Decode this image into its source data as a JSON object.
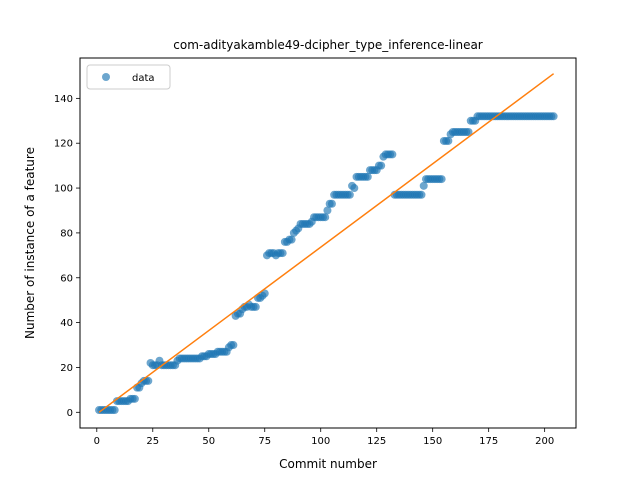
{
  "chart_data": {
    "type": "scatter",
    "title": "com-adityakamble49-dcipher_type_inference-linear",
    "xlabel": "Commit number",
    "ylabel": "Number of instance of a feature",
    "xlim": [
      -7.5,
      214
    ],
    "ylim": [
      -7,
      158
    ],
    "xticks": [
      0,
      25,
      50,
      75,
      100,
      125,
      150,
      175,
      200
    ],
    "yticks": [
      0,
      20,
      40,
      60,
      80,
      100,
      120,
      140
    ],
    "grid": false,
    "legend": {
      "placement": "top-left",
      "entries": [
        "data"
      ]
    },
    "colors": {
      "data": "#1f77b4",
      "fit": "#ff7f0e"
    },
    "series": [
      {
        "name": "data",
        "kind": "scatter",
        "points": [
          [
            1,
            1
          ],
          [
            2,
            1
          ],
          [
            3,
            1
          ],
          [
            4,
            1
          ],
          [
            5,
            1
          ],
          [
            6,
            1
          ],
          [
            7,
            1
          ],
          [
            8,
            1
          ],
          [
            9,
            5
          ],
          [
            10,
            5
          ],
          [
            11,
            5
          ],
          [
            12,
            5
          ],
          [
            13,
            5
          ],
          [
            14,
            5
          ],
          [
            15,
            6
          ],
          [
            16,
            6
          ],
          [
            17,
            6
          ],
          [
            18,
            11
          ],
          [
            19,
            11
          ],
          [
            20,
            13
          ],
          [
            21,
            14
          ],
          [
            22,
            14
          ],
          [
            23,
            14
          ],
          [
            24,
            22
          ],
          [
            25,
            21
          ],
          [
            26,
            21
          ],
          [
            27,
            21
          ],
          [
            28,
            23
          ],
          [
            29,
            21
          ],
          [
            30,
            21
          ],
          [
            31,
            21
          ],
          [
            32,
            21
          ],
          [
            33,
            21
          ],
          [
            34,
            21
          ],
          [
            35,
            21
          ],
          [
            36,
            23
          ],
          [
            37,
            24
          ],
          [
            38,
            24
          ],
          [
            39,
            24
          ],
          [
            40,
            24
          ],
          [
            41,
            24
          ],
          [
            42,
            24
          ],
          [
            43,
            24
          ],
          [
            44,
            24
          ],
          [
            45,
            24
          ],
          [
            46,
            24
          ],
          [
            47,
            25
          ],
          [
            48,
            25
          ],
          [
            49,
            25
          ],
          [
            50,
            26
          ],
          [
            51,
            26
          ],
          [
            52,
            26
          ],
          [
            53,
            26
          ],
          [
            54,
            27
          ],
          [
            55,
            27
          ],
          [
            56,
            27
          ],
          [
            57,
            27
          ],
          [
            58,
            27
          ],
          [
            59,
            29
          ],
          [
            60,
            30
          ],
          [
            61,
            30
          ],
          [
            62,
            43
          ],
          [
            63,
            44
          ],
          [
            64,
            44
          ],
          [
            65,
            46
          ],
          [
            66,
            47
          ],
          [
            67,
            47
          ],
          [
            68,
            48
          ],
          [
            69,
            47
          ],
          [
            70,
            47
          ],
          [
            71,
            47
          ],
          [
            72,
            51
          ],
          [
            73,
            51
          ],
          [
            74,
            52
          ],
          [
            75,
            53
          ],
          [
            76,
            70
          ],
          [
            77,
            71
          ],
          [
            78,
            71
          ],
          [
            79,
            71
          ],
          [
            80,
            70
          ],
          [
            81,
            71
          ],
          [
            82,
            71
          ],
          [
            83,
            71
          ],
          [
            84,
            76
          ],
          [
            85,
            76
          ],
          [
            86,
            77
          ],
          [
            87,
            77
          ],
          [
            88,
            80
          ],
          [
            89,
            81
          ],
          [
            90,
            82
          ],
          [
            91,
            84
          ],
          [
            92,
            84
          ],
          [
            93,
            84
          ],
          [
            94,
            84
          ],
          [
            95,
            84
          ],
          [
            96,
            85
          ],
          [
            97,
            87
          ],
          [
            98,
            87
          ],
          [
            99,
            87
          ],
          [
            100,
            87
          ],
          [
            101,
            87
          ],
          [
            102,
            87
          ],
          [
            103,
            90
          ],
          [
            104,
            93
          ],
          [
            105,
            93
          ],
          [
            106,
            97
          ],
          [
            107,
            97
          ],
          [
            108,
            97
          ],
          [
            109,
            97
          ],
          [
            110,
            97
          ],
          [
            111,
            97
          ],
          [
            112,
            97
          ],
          [
            113,
            97
          ],
          [
            114,
            101
          ],
          [
            115,
            100
          ],
          [
            116,
            105
          ],
          [
            117,
            105
          ],
          [
            118,
            105
          ],
          [
            119,
            105
          ],
          [
            120,
            105
          ],
          [
            121,
            105
          ],
          [
            122,
            108
          ],
          [
            123,
            108
          ],
          [
            124,
            108
          ],
          [
            125,
            108
          ],
          [
            126,
            110
          ],
          [
            127,
            110
          ],
          [
            128,
            114
          ],
          [
            129,
            115
          ],
          [
            130,
            115
          ],
          [
            131,
            115
          ],
          [
            132,
            115
          ],
          [
            133,
            97
          ],
          [
            134,
            97
          ],
          [
            135,
            97
          ],
          [
            136,
            97
          ],
          [
            137,
            97
          ],
          [
            138,
            97
          ],
          [
            139,
            97
          ],
          [
            140,
            97
          ],
          [
            141,
            97
          ],
          [
            142,
            97
          ],
          [
            143,
            97
          ],
          [
            144,
            97
          ],
          [
            145,
            97
          ],
          [
            146,
            101
          ],
          [
            147,
            104
          ],
          [
            148,
            104
          ],
          [
            149,
            104
          ],
          [
            150,
            104
          ],
          [
            151,
            104
          ],
          [
            152,
            104
          ],
          [
            153,
            104
          ],
          [
            154,
            104
          ],
          [
            155,
            121
          ],
          [
            156,
            121
          ],
          [
            157,
            121
          ],
          [
            158,
            124
          ],
          [
            159,
            125
          ],
          [
            160,
            125
          ],
          [
            161,
            125
          ],
          [
            162,
            125
          ],
          [
            163,
            125
          ],
          [
            164,
            125
          ],
          [
            165,
            125
          ],
          [
            166,
            125
          ],
          [
            167,
            130
          ],
          [
            168,
            130
          ],
          [
            169,
            130
          ],
          [
            170,
            132
          ],
          [
            171,
            132
          ],
          [
            172,
            132
          ],
          [
            173,
            132
          ],
          [
            174,
            132
          ],
          [
            175,
            132
          ],
          [
            176,
            132
          ],
          [
            177,
            132
          ],
          [
            178,
            132
          ],
          [
            179,
            132
          ],
          [
            180,
            132
          ],
          [
            181,
            132
          ],
          [
            182,
            132
          ],
          [
            183,
            132
          ],
          [
            184,
            132
          ],
          [
            185,
            132
          ],
          [
            186,
            132
          ],
          [
            187,
            132
          ],
          [
            188,
            132
          ],
          [
            189,
            132
          ],
          [
            190,
            132
          ],
          [
            191,
            132
          ],
          [
            192,
            132
          ],
          [
            193,
            132
          ],
          [
            194,
            132
          ],
          [
            195,
            132
          ],
          [
            196,
            132
          ],
          [
            197,
            132
          ],
          [
            198,
            132
          ],
          [
            199,
            132
          ],
          [
            200,
            132
          ],
          [
            201,
            132
          ],
          [
            202,
            132
          ],
          [
            203,
            132
          ],
          [
            204,
            132
          ]
        ]
      },
      {
        "kind": "line",
        "points": [
          [
            1,
            0
          ],
          [
            204,
            151
          ]
        ]
      }
    ]
  }
}
